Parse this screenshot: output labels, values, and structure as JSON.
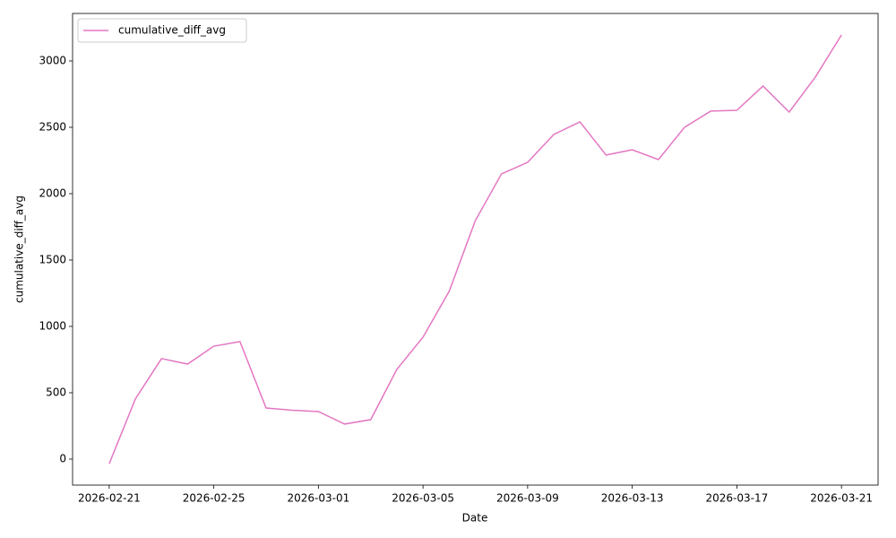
{
  "chart_data": {
    "type": "line",
    "x_label": "Date",
    "y_label": "cumulative_diff_avg",
    "x": [
      "2026-02-21",
      "2026-02-22",
      "2026-02-23",
      "2026-02-24",
      "2026-02-25",
      "2026-02-26",
      "2026-02-27",
      "2026-02-28",
      "2026-03-01",
      "2026-03-02",
      "2026-03-03",
      "2026-03-04",
      "2026-03-05",
      "2026-03-06",
      "2026-03-07",
      "2026-03-08",
      "2026-03-09",
      "2026-03-10",
      "2026-03-11",
      "2026-03-12",
      "2026-03-13",
      "2026-03-14",
      "2026-03-15",
      "2026-03-16",
      "2026-03-17",
      "2026-03-18",
      "2026-03-19",
      "2026-03-20",
      "2026-03-21"
    ],
    "series": [
      {
        "name": "cumulative_diff_avg",
        "color": "#e377c2",
        "values": [
          -35,
          453,
          757,
          716,
          851,
          885,
          385,
          368,
          358,
          264,
          297,
          676,
          919,
          1264,
          1797,
          2149,
          2236,
          2446,
          2541,
          2291,
          2331,
          2257,
          2500,
          2622,
          2628,
          2811,
          2615,
          2878,
          3196
        ]
      }
    ],
    "xlim": [
      "2026-02-19T14:24:00Z",
      "2026-03-22T09:36:00Z"
    ],
    "xticks": [
      "2026-02-21",
      "2026-02-25",
      "2026-03-01",
      "2026-03-05",
      "2026-03-09",
      "2026-03-13",
      "2026-03-17",
      "2026-03-21"
    ],
    "ylim": [
      -196,
      3358
    ],
    "yticks": [
      0,
      500,
      1000,
      1500,
      2000,
      2500,
      3000
    ],
    "grid": false,
    "legend": "upper left"
  }
}
